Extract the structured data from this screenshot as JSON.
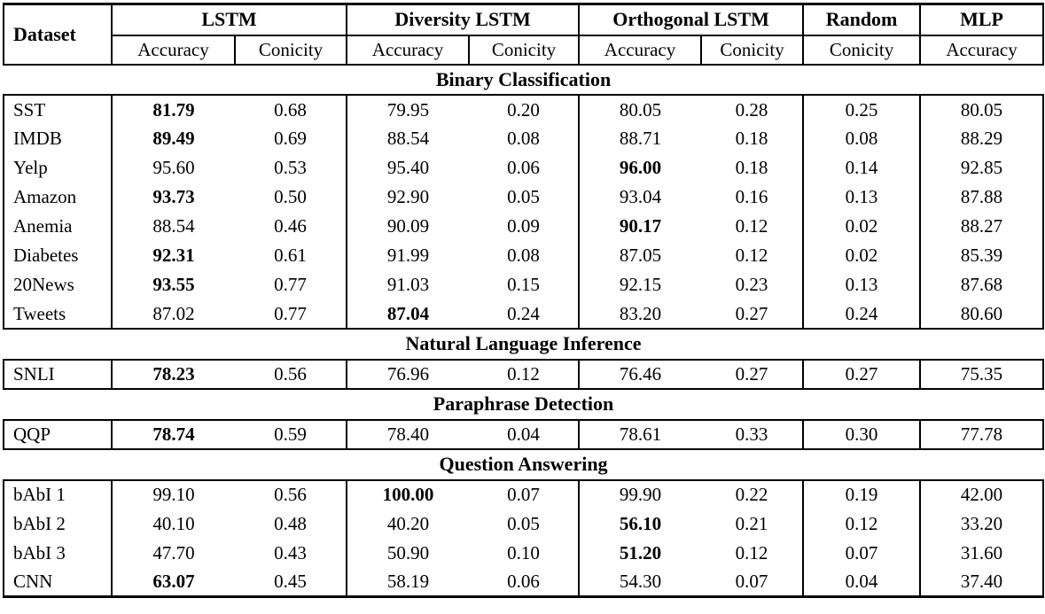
{
  "table": {
    "header": {
      "dataset_label": "Dataset",
      "groups": [
        {
          "label": "LSTM",
          "cols": [
            "Accuracy",
            "Conicity"
          ]
        },
        {
          "label": "Diversity LSTM",
          "cols": [
            "Accuracy",
            "Conicity"
          ]
        },
        {
          "label": "Orthogonal LSTM",
          "cols": [
            "Accuracy",
            "Conicity"
          ]
        },
        {
          "label": "Random",
          "cols": [
            "Conicity"
          ]
        },
        {
          "label": "MLP",
          "cols": [
            "Accuracy"
          ]
        }
      ]
    },
    "sections": [
      {
        "title": "Binary Classification",
        "rows": [
          {
            "dataset": "SST",
            "values": [
              "81.79",
              "0.68",
              "79.95",
              "0.20",
              "80.05",
              "0.28",
              "0.25",
              "80.05"
            ],
            "bold_index": 0
          },
          {
            "dataset": "IMDB",
            "values": [
              "89.49",
              "0.69",
              "88.54",
              "0.08",
              "88.71",
              "0.18",
              "0.08",
              "88.29"
            ],
            "bold_index": 0
          },
          {
            "dataset": "Yelp",
            "values": [
              "95.60",
              "0.53",
              "95.40",
              "0.06",
              "96.00",
              "0.18",
              "0.14",
              "92.85"
            ],
            "bold_index": 4
          },
          {
            "dataset": "Amazon",
            "values": [
              "93.73",
              "0.50",
              "92.90",
              "0.05",
              "93.04",
              "0.16",
              "0.13",
              "87.88"
            ],
            "bold_index": 0
          },
          {
            "dataset": "Anemia",
            "values": [
              "88.54",
              "0.46",
              "90.09",
              "0.09",
              "90.17",
              "0.12",
              "0.02",
              "88.27"
            ],
            "bold_index": 4
          },
          {
            "dataset": "Diabetes",
            "values": [
              "92.31",
              "0.61",
              "91.99",
              "0.08",
              "87.05",
              "0.12",
              "0.02",
              "85.39"
            ],
            "bold_index": 0
          },
          {
            "dataset": "20News",
            "values": [
              "93.55",
              "0.77",
              "91.03",
              "0.15",
              "92.15",
              "0.23",
              "0.13",
              "87.68"
            ],
            "bold_index": 0
          },
          {
            "dataset": "Tweets",
            "values": [
              "87.02",
              "0.77",
              "87.04",
              "0.24",
              "83.20",
              "0.27",
              "0.24",
              "80.60"
            ],
            "bold_index": 2
          }
        ]
      },
      {
        "title": "Natural Language Inference",
        "rows": [
          {
            "dataset": "SNLI",
            "values": [
              "78.23",
              "0.56",
              "76.96",
              "0.12",
              "76.46",
              "0.27",
              "0.27",
              "75.35"
            ],
            "bold_index": 0
          }
        ]
      },
      {
        "title": "Paraphrase Detection",
        "rows": [
          {
            "dataset": "QQP",
            "values": [
              "78.74",
              "0.59",
              "78.40",
              "0.04",
              "78.61",
              "0.33",
              "0.30",
              "77.78"
            ],
            "bold_index": 0
          }
        ]
      },
      {
        "title": "Question Answering",
        "rows": [
          {
            "dataset": "bAbI 1",
            "values": [
              "99.10",
              "0.56",
              "100.00",
              "0.07",
              "99.90",
              "0.22",
              "0.19",
              "42.00"
            ],
            "bold_index": 2
          },
          {
            "dataset": "bAbI 2",
            "values": [
              "40.10",
              "0.48",
              "40.20",
              "0.05",
              "56.10",
              "0.21",
              "0.12",
              "33.20"
            ],
            "bold_index": 4
          },
          {
            "dataset": "bAbI 3",
            "values": [
              "47.70",
              "0.43",
              "50.90",
              "0.10",
              "51.20",
              "0.12",
              "0.07",
              "31.60"
            ],
            "bold_index": 4
          },
          {
            "dataset": "CNN",
            "values": [
              "63.07",
              "0.45",
              "58.19",
              "0.06",
              "54.30",
              "0.07",
              "0.04",
              "37.40"
            ],
            "bold_index": 0
          }
        ]
      }
    ]
  }
}
